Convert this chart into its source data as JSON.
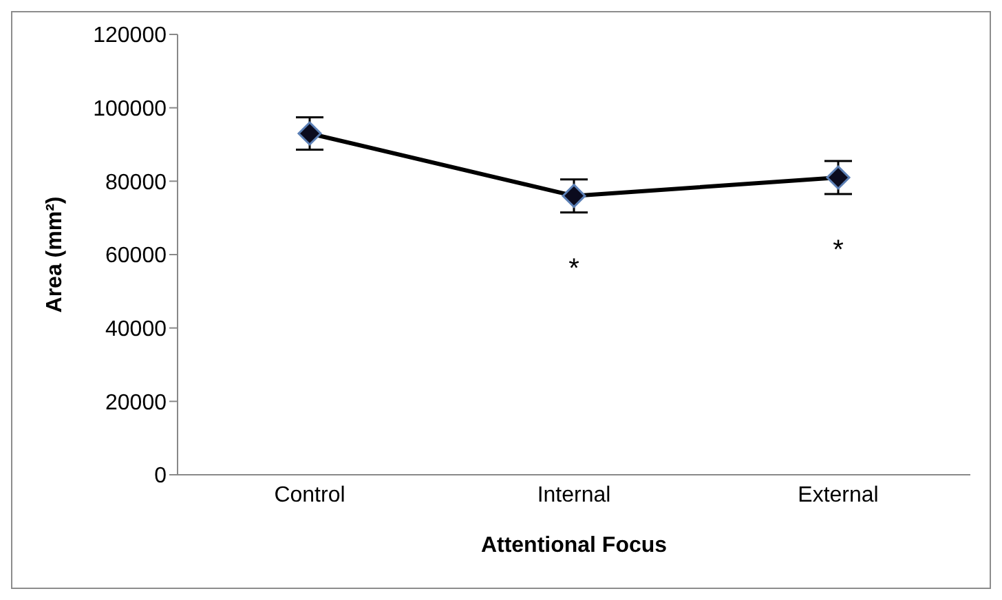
{
  "chart_data": {
    "type": "line",
    "xlabel": "Attentional Focus",
    "ylabel": "Area (mm²)",
    "categories": [
      "Control",
      "Internal",
      "External"
    ],
    "series": [
      {
        "color": "#000000",
        "values": [
          93000,
          76000,
          81000
        ],
        "errors": [
          4400,
          4500,
          4500
        ]
      }
    ],
    "ylim": [
      0,
      120000
    ],
    "yticks": [
      0,
      20000,
      40000,
      60000,
      80000,
      100000,
      120000
    ],
    "marker": "diamond",
    "line_style": "solid",
    "grid": false,
    "legend": false,
    "annotations": [
      "*",
      "*"
    ]
  }
}
